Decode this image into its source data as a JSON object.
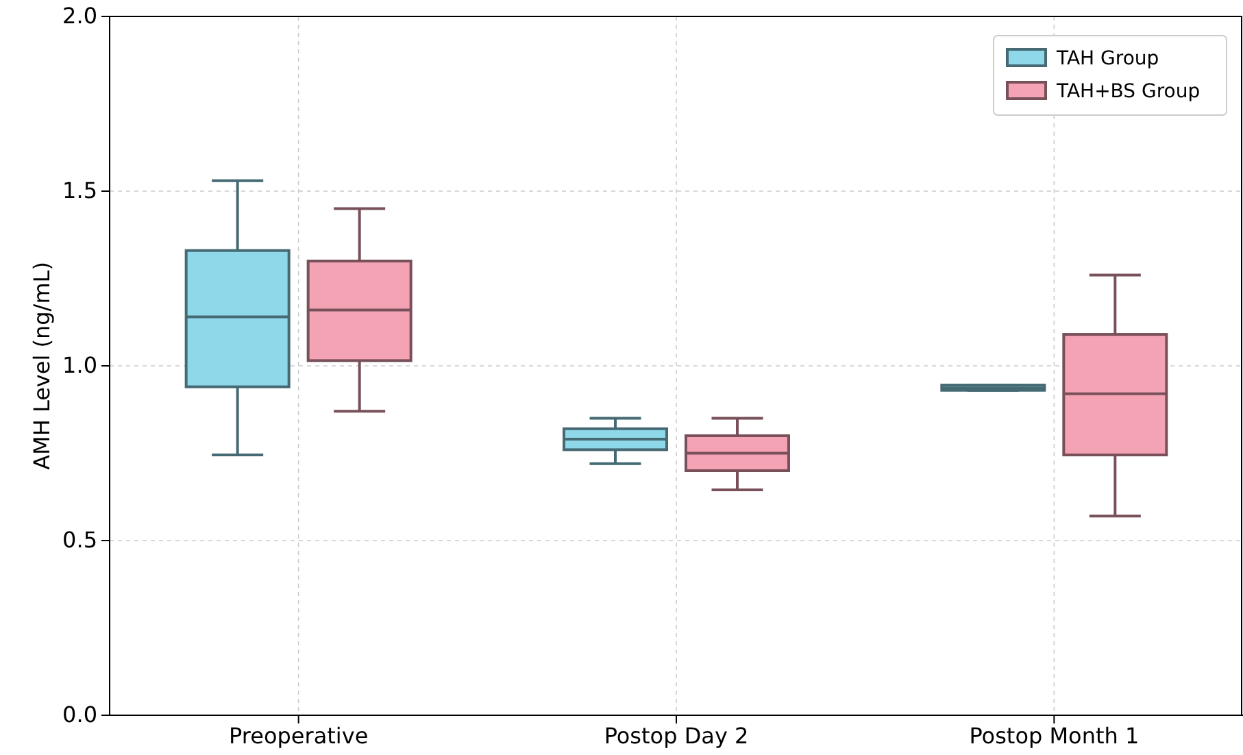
{
  "chart_data": {
    "type": "box",
    "ylabel": "AMH Level (ng/mL)",
    "categories": [
      "Preoperative",
      "Postop Day 2",
      "Postop Month 1"
    ],
    "ylim": [
      0,
      2
    ],
    "yticks": [
      {
        "value": 0,
        "label": "0.0"
      },
      {
        "value": 0.5,
        "label": "0.5"
      },
      {
        "value": 1,
        "label": "1.0"
      },
      {
        "value": 1.5,
        "label": "1.5"
      },
      {
        "value": 2,
        "label": "2.0"
      }
    ],
    "grid": true,
    "legend": "top right",
    "series": [
      {
        "name": "TAH Group",
        "color": "#8fd8ea",
        "boxes": [
          {
            "low": 0.745,
            "q1": 0.94,
            "median": 1.14,
            "q3": 1.33,
            "high": 1.53
          },
          {
            "low": 0.72,
            "q1": 0.76,
            "median": 0.79,
            "q3": 0.82,
            "high": 0.85
          },
          {
            "low": 0.93,
            "q1": 0.93,
            "median": 0.937,
            "q3": 0.945,
            "high": 0.945
          }
        ]
      },
      {
        "name": "TAH+BS Group",
        "color": "#f4a3b5",
        "boxes": [
          {
            "low": 0.87,
            "q1": 1.015,
            "median": 1.16,
            "q3": 1.3,
            "high": 1.45
          },
          {
            "low": 0.645,
            "q1": 0.7,
            "median": 0.75,
            "q3": 0.8,
            "high": 0.85
          },
          {
            "low": 0.57,
            "q1": 0.745,
            "median": 0.92,
            "q3": 1.09,
            "high": 1.26
          }
        ]
      }
    ]
  }
}
